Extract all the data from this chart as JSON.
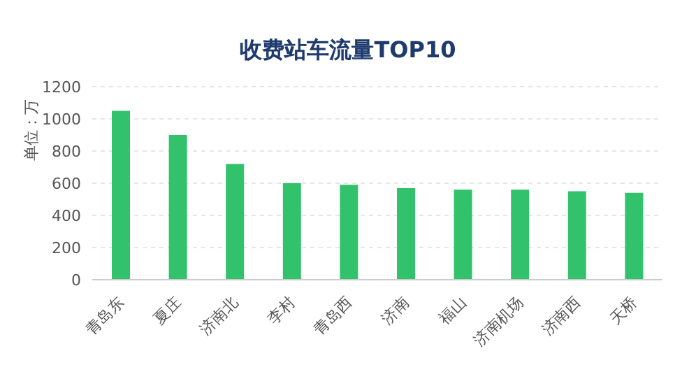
{
  "chart_data": {
    "type": "bar",
    "title": "收费站车流量TOP10",
    "ylabel": "单位：万",
    "categories": [
      "青岛东",
      "夏庄",
      "济南北",
      "李村",
      "青岛西",
      "济南",
      "福山",
      "济南机场",
      "济南西",
      "天桥"
    ],
    "values": [
      1050,
      900,
      720,
      600,
      590,
      570,
      560,
      560,
      550,
      540
    ],
    "color": "#33c26c",
    "ylim": [
      0,
      1200
    ],
    "yticks": [
      0,
      200,
      400,
      600,
      800,
      1000,
      1200
    ],
    "grid": "y"
  }
}
